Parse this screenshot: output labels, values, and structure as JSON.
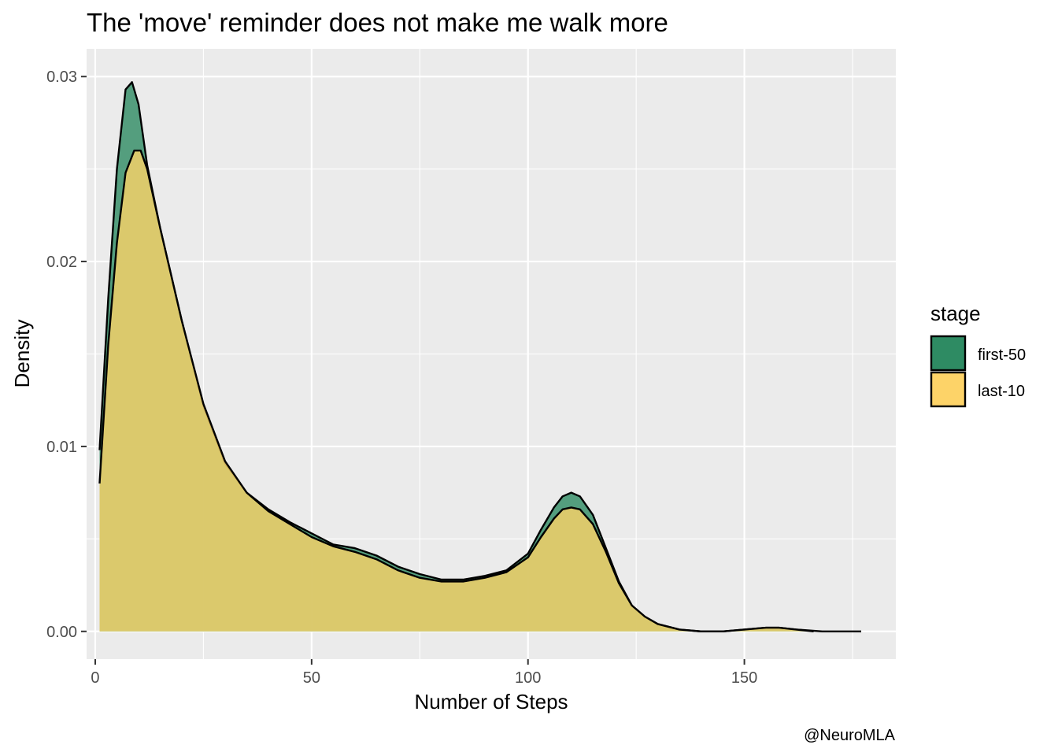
{
  "chart_data": {
    "type": "area",
    "subtype": "density",
    "title": "The 'move' reminder does not make me walk more",
    "xlabel": "Number of Steps",
    "ylabel": "Density",
    "caption": "@NeuroMLA",
    "xlim": [
      -2,
      185
    ],
    "ylim": [
      -0.0015,
      0.0315
    ],
    "x_ticks": [
      0,
      50,
      100,
      150
    ],
    "x_tick_labels": [
      "0",
      "50",
      "100",
      "150"
    ],
    "y_ticks": [
      0,
      0.01,
      0.02,
      0.03
    ],
    "y_tick_labels": [
      "0.00",
      "0.01",
      "0.02",
      "0.03"
    ],
    "grid": true,
    "legend": {
      "title": "stage",
      "placement": "right"
    },
    "series": [
      {
        "name": "first-50",
        "fill": "#2e8b63",
        "points": [
          [
            1,
            0.0098
          ],
          [
            3,
            0.018
          ],
          [
            5,
            0.025
          ],
          [
            7,
            0.0293
          ],
          [
            8.5,
            0.0297
          ],
          [
            10,
            0.0285
          ],
          [
            12,
            0.0252
          ],
          [
            15,
            0.0218
          ],
          [
            20,
            0.0168
          ],
          [
            25,
            0.0122
          ],
          [
            30,
            0.0091
          ],
          [
            35,
            0.0075
          ],
          [
            40,
            0.0066
          ],
          [
            45,
            0.0059
          ],
          [
            50,
            0.0053
          ],
          [
            55,
            0.0047
          ],
          [
            60,
            0.0045
          ],
          [
            65,
            0.0041
          ],
          [
            70,
            0.0035
          ],
          [
            75,
            0.0031
          ],
          [
            80,
            0.0028
          ],
          [
            85,
            0.0028
          ],
          [
            90,
            0.003
          ],
          [
            95,
            0.0033
          ],
          [
            100,
            0.0042
          ],
          [
            103,
            0.0055
          ],
          [
            106,
            0.0067
          ],
          [
            108,
            0.0073
          ],
          [
            110,
            0.0075
          ],
          [
            112,
            0.0073
          ],
          [
            115,
            0.0063
          ],
          [
            118,
            0.0045
          ],
          [
            121,
            0.0027
          ],
          [
            124,
            0.0014
          ],
          [
            127,
            0.0008
          ],
          [
            130,
            0.0004
          ],
          [
            135,
            0.0001
          ],
          [
            140,
            0
          ],
          [
            145,
            0
          ],
          [
            150,
            0.0001
          ],
          [
            155,
            0.0002
          ],
          [
            158,
            0.0002
          ],
          [
            162,
            0.0001
          ],
          [
            168,
            0
          ],
          [
            177,
            0
          ]
        ]
      },
      {
        "name": "last-10",
        "fill": "#fdd368",
        "points": [
          [
            1,
            0.008
          ],
          [
            3,
            0.0155
          ],
          [
            5,
            0.021
          ],
          [
            7,
            0.0248
          ],
          [
            9,
            0.026
          ],
          [
            10.5,
            0.026
          ],
          [
            12,
            0.025
          ],
          [
            15,
            0.0218
          ],
          [
            20,
            0.0168
          ],
          [
            25,
            0.0123
          ],
          [
            30,
            0.0092
          ],
          [
            35,
            0.0075
          ],
          [
            40,
            0.0065
          ],
          [
            45,
            0.0058
          ],
          [
            50,
            0.0051
          ],
          [
            55,
            0.0046
          ],
          [
            60,
            0.0043
          ],
          [
            65,
            0.0039
          ],
          [
            70,
            0.0033
          ],
          [
            75,
            0.0029
          ],
          [
            80,
            0.0027
          ],
          [
            85,
            0.0027
          ],
          [
            90,
            0.0029
          ],
          [
            95,
            0.0032
          ],
          [
            100,
            0.004
          ],
          [
            103,
            0.0051
          ],
          [
            106,
            0.0061
          ],
          [
            108,
            0.0066
          ],
          [
            110,
            0.0067
          ],
          [
            112,
            0.0066
          ],
          [
            115,
            0.0058
          ],
          [
            118,
            0.0043
          ],
          [
            121,
            0.0026
          ],
          [
            124,
            0.0014
          ],
          [
            127,
            0.0008
          ],
          [
            130,
            0.0004
          ],
          [
            135,
            0.0001
          ],
          [
            140,
            0
          ],
          [
            145,
            0
          ],
          [
            150,
            0.0001
          ],
          [
            155,
            0.0002
          ],
          [
            158,
            0.0002
          ],
          [
            162,
            0.0001
          ],
          [
            166,
            0
          ]
        ]
      }
    ]
  }
}
